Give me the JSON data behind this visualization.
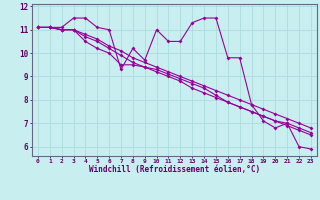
{
  "xlabel": "Windchill (Refroidissement éolien,°C)",
  "bg_color": "#c8eef0",
  "line_color": "#990099",
  "grid_color": "#b0dde0",
  "axis_color": "#660066",
  "spine_color": "#666688",
  "xlim": [
    -0.5,
    23.5
  ],
  "ylim": [
    5.6,
    12.1
  ],
  "xticks": [
    0,
    1,
    2,
    3,
    4,
    5,
    6,
    7,
    8,
    9,
    10,
    11,
    12,
    13,
    14,
    15,
    16,
    17,
    18,
    19,
    20,
    21,
    22,
    23
  ],
  "yticks": [
    6,
    7,
    8,
    9,
    10,
    11,
    12
  ],
  "series": [
    [
      11.1,
      11.1,
      11.1,
      11.5,
      11.5,
      11.1,
      11.0,
      9.3,
      10.2,
      9.7,
      11.0,
      10.5,
      10.5,
      11.3,
      11.5,
      11.5,
      9.8,
      9.8,
      7.8,
      7.1,
      6.8,
      7.0,
      6.0,
      5.9
    ],
    [
      11.1,
      11.1,
      11.0,
      11.0,
      10.5,
      10.2,
      10.0,
      9.5,
      9.5,
      9.4,
      9.3,
      9.1,
      8.9,
      8.7,
      8.5,
      8.2,
      7.9,
      7.7,
      7.5,
      7.3,
      7.1,
      7.0,
      6.8,
      6.6
    ],
    [
      11.1,
      11.1,
      11.0,
      11.0,
      10.8,
      10.6,
      10.3,
      10.1,
      9.8,
      9.6,
      9.4,
      9.2,
      9.0,
      8.8,
      8.6,
      8.4,
      8.2,
      8.0,
      7.8,
      7.6,
      7.4,
      7.2,
      7.0,
      6.8
    ],
    [
      11.1,
      11.1,
      11.0,
      11.0,
      10.7,
      10.5,
      10.2,
      9.9,
      9.6,
      9.4,
      9.2,
      9.0,
      8.8,
      8.5,
      8.3,
      8.1,
      7.9,
      7.7,
      7.5,
      7.3,
      7.1,
      6.9,
      6.7,
      6.5
    ]
  ]
}
